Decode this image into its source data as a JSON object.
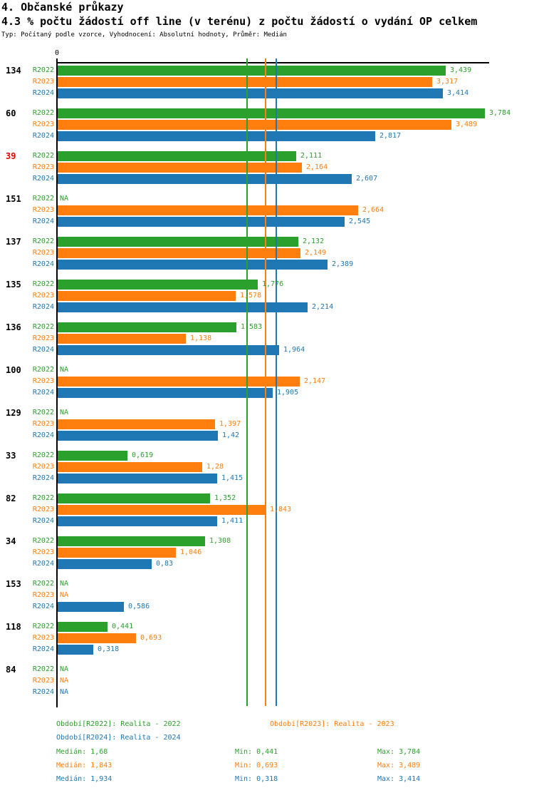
{
  "header": {
    "title": "4. Občanské průkazy",
    "subtitle": "4.3 % počtu žádostí off line (v terénu) z počtu žádostí o vydání OP celkem",
    "meta": "Typ: Počítaný podle vzorce, Vyhodnocení: Absolutní hodnoty, Průměr: Medián"
  },
  "colors": {
    "series": [
      "#2ca02c",
      "#ff7f0e",
      "#1f77b4"
    ],
    "highlight_label": "#e00000",
    "axis": "#000000"
  },
  "chart_data": {
    "type": "bar",
    "orientation": "horizontal",
    "axis_zero_label": "0",
    "xlim": [
      0,
      3.83
    ],
    "grid": false,
    "series": [
      "R2022",
      "R2023",
      "R2024"
    ],
    "groups": [
      {
        "label": "134",
        "highlight": false,
        "values": [
          3.439,
          3.317,
          3.414
        ],
        "display": [
          "3,439",
          "3,317",
          "3,414"
        ]
      },
      {
        "label": "60",
        "highlight": false,
        "values": [
          3.784,
          3.489,
          2.817
        ],
        "display": [
          "3,784",
          "3,489",
          "2,817"
        ]
      },
      {
        "label": "39",
        "highlight": true,
        "values": [
          2.111,
          2.164,
          2.607
        ],
        "display": [
          "2,111",
          "2,164",
          "2,607"
        ]
      },
      {
        "label": "151",
        "highlight": false,
        "values": [
          null,
          2.664,
          2.545
        ],
        "display": [
          "NA",
          "2,664",
          "2,545"
        ]
      },
      {
        "label": "137",
        "highlight": false,
        "values": [
          2.132,
          2.149,
          2.389
        ],
        "display": [
          "2,132",
          "2,149",
          "2,389"
        ]
      },
      {
        "label": "135",
        "highlight": false,
        "values": [
          1.776,
          1.578,
          2.214
        ],
        "display": [
          "1,776",
          "1,578",
          "2,214"
        ]
      },
      {
        "label": "136",
        "highlight": false,
        "values": [
          1.583,
          1.138,
          1.964
        ],
        "display": [
          "1,583",
          "1,138",
          "1,964"
        ]
      },
      {
        "label": "100",
        "highlight": false,
        "values": [
          null,
          2.147,
          1.905
        ],
        "display": [
          "NA",
          "2,147",
          "1,905"
        ]
      },
      {
        "label": "129",
        "highlight": false,
        "values": [
          null,
          1.397,
          1.42
        ],
        "display": [
          "NA",
          "1,397",
          "1,42"
        ]
      },
      {
        "label": "33",
        "highlight": false,
        "values": [
          0.619,
          1.28,
          1.415
        ],
        "display": [
          "0,619",
          "1,28",
          "1,415"
        ]
      },
      {
        "label": "82",
        "highlight": false,
        "values": [
          1.352,
          1.843,
          1.411
        ],
        "display": [
          "1,352",
          "1,843",
          "1,411"
        ]
      },
      {
        "label": "34",
        "highlight": false,
        "values": [
          1.308,
          1.046,
          0.83
        ],
        "display": [
          "1,308",
          "1,046",
          "0,83"
        ]
      },
      {
        "label": "153",
        "highlight": false,
        "values": [
          null,
          null,
          0.586
        ],
        "display": [
          "NA",
          "NA",
          "0,586"
        ]
      },
      {
        "label": "118",
        "highlight": false,
        "values": [
          0.441,
          0.693,
          0.318
        ],
        "display": [
          "0,441",
          "0,693",
          "0,318"
        ]
      },
      {
        "label": "84",
        "highlight": false,
        "values": [
          null,
          null,
          null
        ],
        "display": [
          "NA",
          "NA",
          "NA"
        ]
      }
    ],
    "medians": [
      {
        "series": "R2022",
        "value": 1.68
      },
      {
        "series": "R2023",
        "value": 1.843
      },
      {
        "series": "R2024",
        "value": 1.934
      }
    ]
  },
  "legend": {
    "periods": [
      {
        "label": "Období[R2022]: Realita - 2022"
      },
      {
        "label": "Období[R2023]: Realita - 2023"
      },
      {
        "label": "Období[R2024]: Realita - 2024"
      }
    ],
    "stats": [
      {
        "median": "Medián: 1,68",
        "min": "Min: 0,441",
        "max": "Max: 3,784"
      },
      {
        "median": "Medián: 1,843",
        "min": "Min: 0,693",
        "max": "Max: 3,489"
      },
      {
        "median": "Medián: 1,934",
        "min": "Min: 0,318",
        "max": "Max: 3,414"
      }
    ]
  }
}
